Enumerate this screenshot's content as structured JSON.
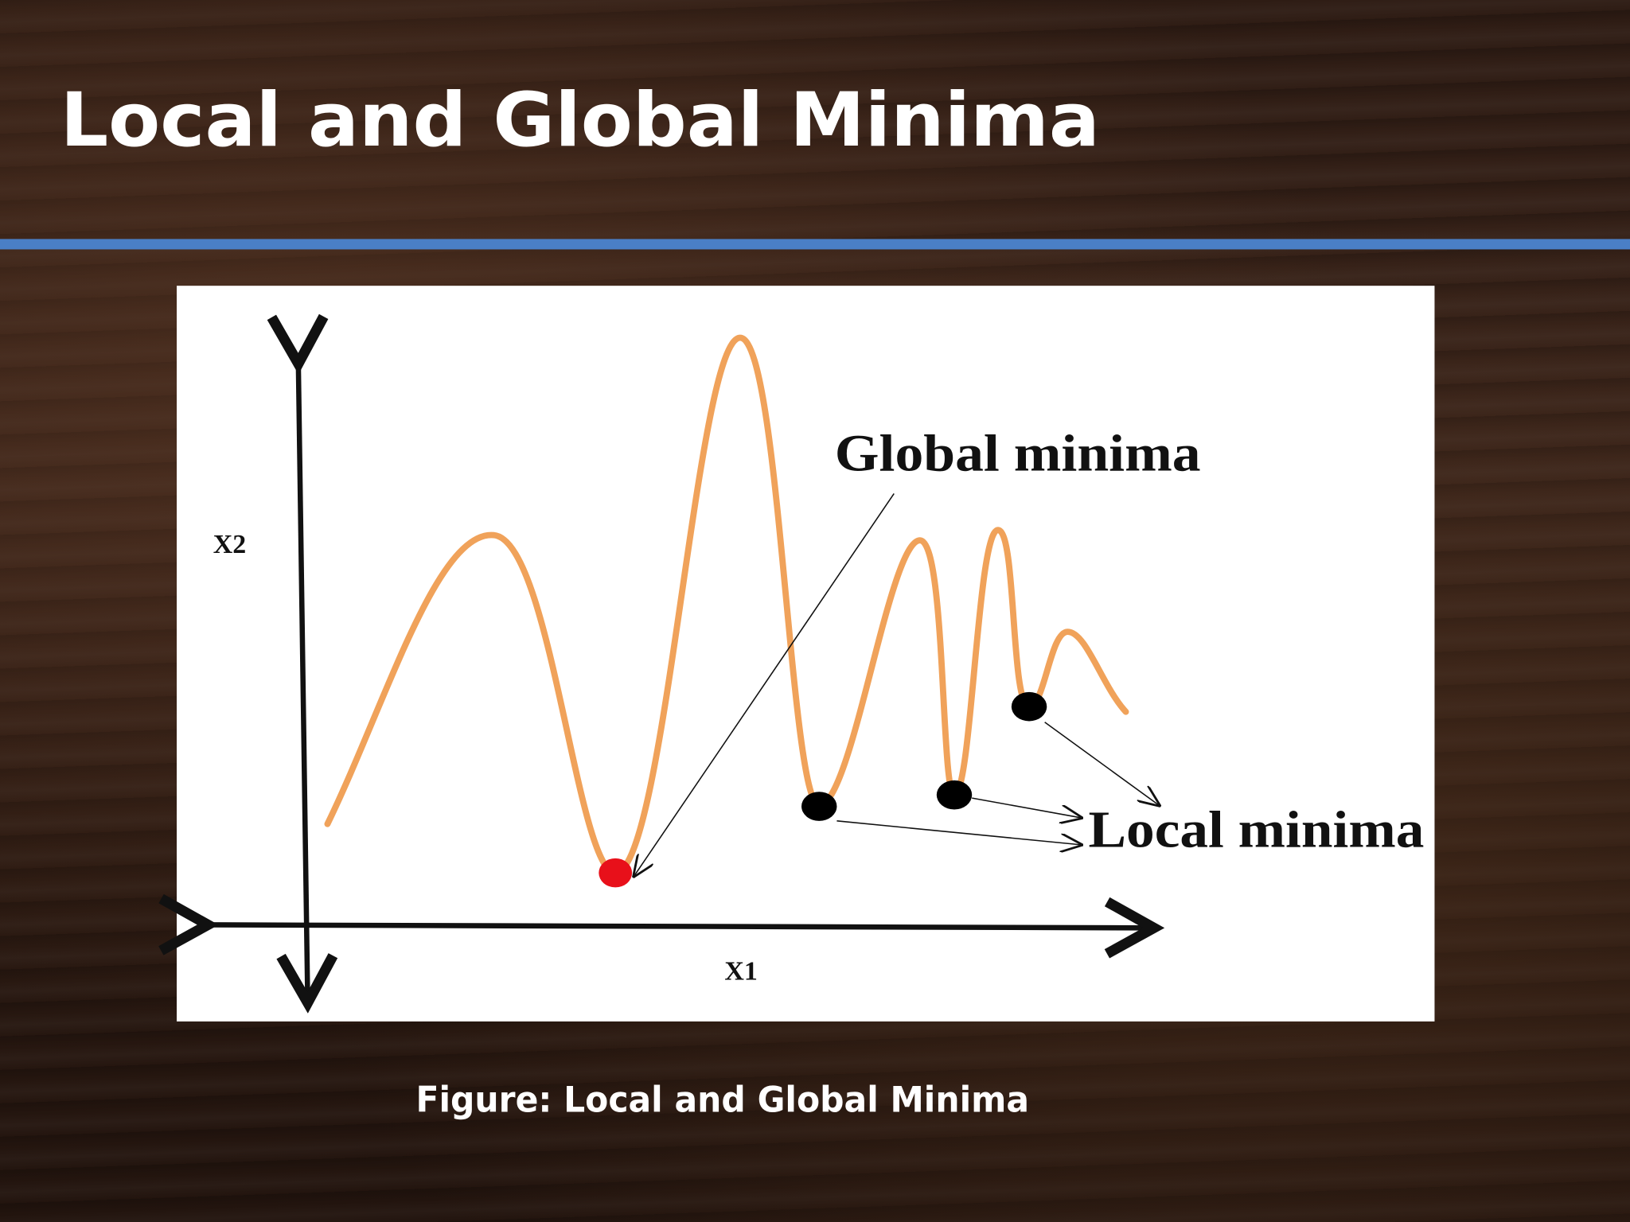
{
  "title": "Local and Global Minima",
  "figure": {
    "y_axis_label": "X2",
    "x_axis_label": "X1",
    "global_label": "Global minima",
    "local_label": "Local minima"
  },
  "caption": "Figure: Local and Global Minima"
}
